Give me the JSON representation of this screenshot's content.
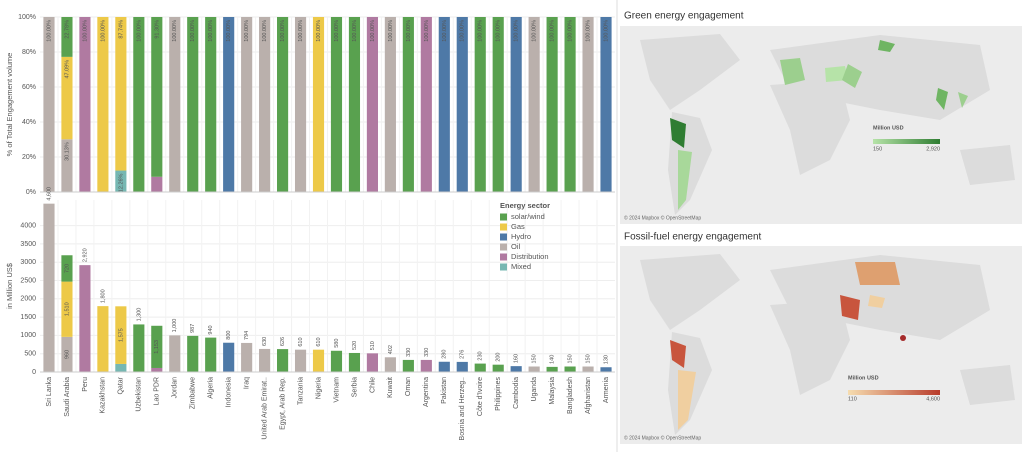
{
  "chart_data": [
    {
      "type": "bar",
      "stacked": true,
      "y_label": "% of Total Engagement volume",
      "ylim": [
        0,
        100
      ],
      "yticks": [
        {
          "value": 0,
          "label": "0%"
        },
        {
          "value": 20,
          "label": "20%"
        },
        {
          "value": 40,
          "label": "40%"
        },
        {
          "value": 60,
          "label": "60%"
        },
        {
          "value": 80,
          "label": "80%"
        },
        {
          "value": 100,
          "label": "100%"
        }
      ],
      "grid": true,
      "series": [
        {
          "color": "#76b7b2",
          "values": [
            null,
            null,
            null,
            null,
            12.26,
            null,
            null,
            null,
            null,
            null,
            null,
            null,
            null,
            null,
            null,
            null,
            null,
            null,
            null,
            null,
            null,
            null,
            null,
            null,
            null,
            null,
            null,
            null,
            null,
            null,
            null,
            null
          ],
          "value_labels": [
            null,
            null,
            null,
            null,
            "12.26%",
            null,
            null,
            null,
            null,
            null,
            null,
            null,
            null,
            null,
            null,
            null,
            null,
            null,
            null,
            null,
            null,
            null,
            null,
            null,
            null,
            null,
            null,
            null,
            null,
            null,
            null,
            null
          ]
        },
        {
          "color": "#b07aa1",
          "values": [
            null,
            null,
            100,
            null,
            null,
            null,
            8.7,
            null,
            null,
            null,
            null,
            null,
            null,
            null,
            null,
            null,
            null,
            null,
            100,
            null,
            null,
            100,
            null,
            null,
            null,
            null,
            null,
            null,
            null,
            null,
            null,
            null
          ],
          "value_labels": [
            null,
            null,
            "100.00%",
            null,
            null,
            null,
            null,
            null,
            null,
            null,
            null,
            null,
            null,
            null,
            null,
            null,
            null,
            null,
            "100.00%",
            null,
            null,
            "100.00%",
            null,
            null,
            null,
            null,
            null,
            null,
            null,
            null,
            null,
            null
          ]
        },
        {
          "color": "#bab0ac",
          "values": [
            100,
            30.13,
            null,
            null,
            null,
            null,
            null,
            100,
            null,
            null,
            null,
            100,
            100,
            null,
            100,
            null,
            null,
            null,
            null,
            100,
            null,
            null,
            null,
            null,
            null,
            null,
            null,
            100,
            null,
            null,
            100,
            null
          ],
          "value_labels": [
            "100.00%",
            "30.13%",
            null,
            null,
            null,
            null,
            null,
            "100.00%",
            null,
            null,
            null,
            "100.00%",
            "100.00%",
            null,
            "100.00%",
            null,
            null,
            null,
            null,
            "100.00%",
            null,
            null,
            null,
            null,
            null,
            null,
            null,
            "100.00%",
            null,
            null,
            "100.00%",
            null
          ]
        },
        {
          "color": "#4e79a7",
          "values": [
            null,
            null,
            null,
            null,
            null,
            null,
            null,
            null,
            null,
            null,
            100,
            null,
            null,
            null,
            null,
            null,
            null,
            null,
            null,
            null,
            null,
            null,
            100,
            100,
            null,
            null,
            100,
            null,
            null,
            null,
            null,
            100
          ],
          "value_labels": [
            null,
            null,
            null,
            null,
            null,
            null,
            null,
            null,
            null,
            null,
            "100.00%",
            null,
            null,
            null,
            null,
            null,
            null,
            null,
            null,
            null,
            null,
            null,
            "100.00%",
            "100.00%",
            null,
            null,
            "100.00%",
            null,
            null,
            null,
            null,
            "100.00%"
          ]
        },
        {
          "color": "#edc948",
          "values": [
            null,
            47.09,
            null,
            100,
            87.74,
            null,
            null,
            null,
            null,
            null,
            null,
            null,
            null,
            null,
            null,
            100,
            null,
            null,
            null,
            null,
            null,
            null,
            null,
            null,
            null,
            null,
            null,
            null,
            null,
            null,
            null,
            null
          ],
          "value_labels": [
            null,
            "47.09%",
            null,
            "100.00%",
            "87.74%",
            null,
            null,
            null,
            null,
            null,
            null,
            null,
            null,
            null,
            null,
            "100.00%",
            null,
            null,
            null,
            null,
            null,
            null,
            null,
            null,
            null,
            null,
            null,
            null,
            null,
            null,
            null,
            null
          ]
        },
        {
          "color": "#59a14f",
          "values": [
            null,
            22.78,
            null,
            null,
            null,
            100,
            91.3,
            null,
            100,
            100,
            null,
            null,
            null,
            100,
            null,
            null,
            100,
            100,
            null,
            null,
            100,
            null,
            null,
            null,
            100,
            100,
            null,
            null,
            100,
            100,
            null,
            null
          ],
          "value_labels": [
            null,
            "22.78%",
            null,
            null,
            null,
            "100.00%",
            "91.30%",
            null,
            "100.00%",
            "100.00%",
            null,
            null,
            null,
            "100.00%",
            null,
            null,
            "100.00%",
            "100.00%",
            null,
            null,
            "100.00%",
            null,
            null,
            null,
            "100.00%",
            "100.00%",
            null,
            null,
            "100.00%",
            "100.00%",
            null,
            null
          ]
        }
      ]
    },
    {
      "type": "bar",
      "stacked": true,
      "y_label": "in Million US$",
      "categories": [
        "Sri Lanka",
        "Saudi Arabia",
        "Peru",
        "Kazakhstan",
        "Qatar",
        "Uzbekistan",
        "Lao PDR",
        "Jordan",
        "Zimbabwe",
        "Algeria",
        "Indonesia",
        "Iraq",
        "United Arab Emirat..",
        "Egypt, Arab Rep.",
        "Tanzania",
        "Nigeria",
        "Vietnam",
        "Serbia",
        "Chile",
        "Kuwait",
        "Oman",
        "Argentina",
        "Pakistan",
        "Bosnia and Herzeg..",
        "Côte d'Ivoire",
        "Philippines",
        "Cambodia",
        "Uganda",
        "Malaysia",
        "Bangladesh",
        "Afghanistan",
        "Armenia"
      ],
      "ylim": [
        0,
        4700
      ],
      "yticks": [
        0,
        500,
        1000,
        1500,
        2000,
        2500,
        3000,
        3500,
        4000
      ],
      "grid": true,
      "legend_title": "Energy sector",
      "legend": "top-right",
      "series": [
        {
          "name": "Mixed",
          "color": "#76b7b2",
          "values": [
            null,
            null,
            null,
            null,
            220,
            null,
            null,
            null,
            null,
            null,
            null,
            null,
            null,
            null,
            null,
            null,
            null,
            null,
            null,
            null,
            null,
            null,
            null,
            null,
            null,
            null,
            null,
            null,
            null,
            null,
            null,
            null
          ],
          "value_labels": [
            null,
            null,
            null,
            null,
            null,
            null,
            null,
            null,
            null,
            null,
            null,
            null,
            null,
            null,
            null,
            null,
            null,
            null,
            null,
            null,
            null,
            null,
            null,
            null,
            null,
            null,
            null,
            null,
            null,
            null,
            null,
            null
          ]
        },
        {
          "name": "Distribution",
          "color": "#b07aa1",
          "values": [
            null,
            null,
            2920,
            null,
            null,
            null,
            110,
            null,
            null,
            null,
            null,
            null,
            null,
            null,
            null,
            null,
            null,
            null,
            510,
            null,
            null,
            330,
            null,
            null,
            null,
            null,
            null,
            null,
            null,
            null,
            null,
            null
          ],
          "value_labels": [
            null,
            null,
            "2,920",
            null,
            null,
            null,
            null,
            null,
            null,
            null,
            null,
            null,
            null,
            null,
            null,
            null,
            null,
            null,
            "510",
            null,
            null,
            "330",
            null,
            null,
            null,
            null,
            null,
            null,
            null,
            null,
            null,
            null
          ]
        },
        {
          "name": "Oil",
          "color": "#bab0ac",
          "values": [
            4600,
            960,
            null,
            null,
            null,
            null,
            null,
            1000,
            null,
            null,
            null,
            794,
            630,
            null,
            610,
            null,
            null,
            null,
            null,
            402,
            null,
            null,
            null,
            null,
            null,
            null,
            null,
            150,
            null,
            null,
            150,
            null
          ],
          "value_labels": [
            "4,600",
            "960",
            null,
            null,
            null,
            null,
            null,
            "1,000",
            null,
            null,
            null,
            "794",
            "630",
            null,
            "610",
            null,
            null,
            null,
            null,
            "402",
            null,
            null,
            null,
            null,
            null,
            null,
            null,
            "150",
            null,
            null,
            "150",
            null
          ]
        },
        {
          "name": "Hydro",
          "color": "#4e79a7",
          "values": [
            null,
            null,
            null,
            null,
            null,
            null,
            null,
            null,
            null,
            null,
            800,
            null,
            null,
            null,
            null,
            null,
            null,
            null,
            null,
            null,
            null,
            null,
            280,
            276,
            null,
            null,
            160,
            null,
            null,
            null,
            null,
            130
          ],
          "value_labels": [
            null,
            null,
            null,
            null,
            null,
            null,
            null,
            null,
            null,
            null,
            "800",
            null,
            null,
            null,
            null,
            null,
            null,
            null,
            null,
            null,
            null,
            null,
            "280",
            "276",
            null,
            null,
            "160",
            null,
            null,
            null,
            null,
            "130"
          ]
        },
        {
          "name": "Gas",
          "color": "#edc948",
          "values": [
            null,
            1510,
            null,
            1800,
            1575,
            null,
            null,
            null,
            null,
            null,
            null,
            null,
            null,
            null,
            null,
            610,
            null,
            null,
            null,
            null,
            null,
            null,
            null,
            null,
            null,
            null,
            null,
            null,
            null,
            null,
            null,
            null
          ],
          "value_labels": [
            null,
            "1,510",
            null,
            "1,800",
            "1,575",
            null,
            null,
            null,
            null,
            null,
            null,
            null,
            null,
            null,
            null,
            "610",
            null,
            null,
            null,
            null,
            null,
            null,
            null,
            null,
            null,
            null,
            null,
            null,
            null,
            null,
            null,
            null
          ]
        },
        {
          "name": "solar/wind",
          "color": "#59a14f",
          "values": [
            null,
            720,
            null,
            null,
            null,
            1300,
            1153,
            null,
            987,
            940,
            null,
            null,
            null,
            626,
            null,
            null,
            580,
            520,
            null,
            null,
            330,
            null,
            null,
            null,
            230,
            200,
            null,
            null,
            140,
            150,
            null,
            null
          ],
          "value_labels": [
            null,
            "720",
            null,
            null,
            null,
            "1,300",
            "1,153",
            null,
            "987",
            "940",
            null,
            null,
            null,
            "626",
            null,
            null,
            "580",
            "520",
            null,
            null,
            "330",
            null,
            null,
            null,
            "230",
            "200",
            null,
            null,
            "140",
            "150",
            null,
            null
          ]
        }
      ]
    }
  ],
  "maps": [
    {
      "title": "Green energy engagement",
      "legend_title": "Million USD",
      "legend_min": "150",
      "legend_max": "2,920",
      "attribution": "© 2024 Mapbox © OpenStreetMap"
    },
    {
      "title": "Fossil-fuel energy engagement",
      "legend_title": "Million USD",
      "legend_min": "110",
      "legend_max": "4,600",
      "attribution": "© 2024 Mapbox © OpenStreetMap"
    }
  ]
}
